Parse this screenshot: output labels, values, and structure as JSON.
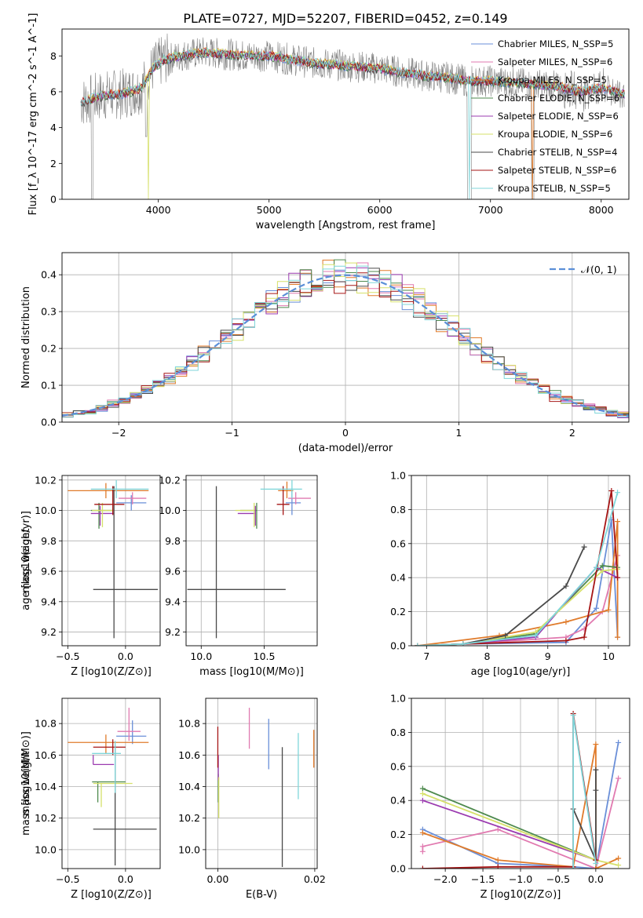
{
  "title": "PLATE=0727, MJD=52207, FIBERID=0452, z=0.149",
  "colors": {
    "chabrier_miles": "#6a8fd8",
    "salpeter_miles": "#e17ab0",
    "kroupa_miles": "#e07b2b",
    "chabrier_elodie": "#4e8a4e",
    "salpeter_elodie": "#9b3bb0",
    "kroupa_elodie": "#d6e06a",
    "chabrier_stelib": "#4a4a4a",
    "salpeter_stelib": "#a61515",
    "kroupa_stelib": "#7fd6da",
    "data": "#808080",
    "gaussian": "#5b8fd8"
  },
  "chart_data": [
    {
      "id": "spectrum",
      "type": "line",
      "xlabel": "wavelength [Angstrom, rest frame]",
      "ylabel": "Flux [f_λ 10^-17 erg cm^-2 s^-1 A^-1]",
      "xlim": [
        3130,
        8250
      ],
      "ylim": [
        0,
        9.5
      ],
      "xticks": [
        4000,
        5000,
        6000,
        7000,
        8000
      ],
      "yticks": [
        0,
        2,
        4,
        6,
        8
      ],
      "grid": false,
      "legend_position": "upper-right",
      "legend": [
        "Chabrier MILES, N_SSP=5",
        "Salpeter MILES, N_SSP=6",
        "Kroupa MILES, N_SSP=5",
        "Chabrier ELODIE, N_SSP=6",
        "Salpeter ELODIE, N_SSP=6",
        "Kroupa ELODIE, N_SSP=6",
        "Chabrier STELIB, N_SSP=4",
        "Salpeter STELIB, N_SSP=6",
        "Kroupa STELIB, N_SSP=5"
      ],
      "continuum": {
        "wavelength": [
          3300,
          3500,
          3700,
          3850,
          3950,
          4050,
          4200,
          4400,
          4600,
          4800,
          5000,
          5200,
          5400,
          5600,
          5800,
          6000,
          6200,
          6400,
          6600,
          6800,
          7000,
          7200,
          7400,
          7600,
          7800,
          8000,
          8250
        ],
        "flux": [
          5.4,
          5.8,
          5.9,
          6.2,
          7.3,
          7.8,
          8.0,
          8.2,
          8.1,
          8.0,
          8.0,
          7.8,
          7.6,
          7.5,
          7.4,
          7.3,
          7.1,
          6.9,
          6.8,
          6.6,
          6.6,
          6.5,
          6.4,
          6.3,
          6.0,
          6.2,
          5.8
        ]
      }
    },
    {
      "id": "residuals",
      "type": "histogram",
      "xlabel": "(data-model)/error",
      "ylabel": "Normed distribution",
      "xlim": [
        -2.5,
        2.5
      ],
      "ylim": [
        0,
        0.46
      ],
      "xticks": [
        -2,
        -1,
        0,
        1,
        2
      ],
      "yticks": [
        0.0,
        0.1,
        0.2,
        0.3,
        0.4
      ],
      "grid": true,
      "legend_position": "upper-right",
      "legend": [
        "𝒩(0, 1)"
      ],
      "gaussian": {
        "mean": 0,
        "sigma": 1
      }
    },
    {
      "id": "age_vs_Z",
      "type": "errorbar",
      "xlabel": "Z [log10(Z/Z⊙)]",
      "ylabel": "age [log10(age/yr)]",
      "xlim": [
        -0.55,
        0.3
      ],
      "ylim": [
        9.11,
        10.23
      ],
      "xticks": [
        -0.5,
        0.0
      ],
      "yticks": [
        9.2,
        9.4,
        9.6,
        9.8,
        10.0,
        10.2
      ],
      "grid": true,
      "points": [
        {
          "series": "chabrier_miles",
          "x": 0.05,
          "xerr": [
            0.13,
            0.13
          ],
          "y": 10.05,
          "yerr": [
            0.05,
            0.05
          ]
        },
        {
          "series": "salpeter_miles",
          "x": 0.06,
          "xerr": [
            0.12,
            0.12
          ],
          "y": 10.08,
          "yerr": [
            0.04,
            0.04
          ]
        },
        {
          "series": "kroupa_miles",
          "x": -0.17,
          "xerr": [
            0.33,
            0.37
          ],
          "y": 10.13,
          "yerr": [
            0.05,
            0.05
          ]
        },
        {
          "series": "chabrier_elodie",
          "x": -0.23,
          "xerr": [
            0.07,
            0.12
          ],
          "y": 10.0,
          "yerr": [
            0.12,
            0.05
          ]
        },
        {
          "series": "salpeter_elodie",
          "x": -0.22,
          "xerr": [
            0.08,
            0.12
          ],
          "y": 9.98,
          "yerr": [
            0.08,
            0.05
          ]
        },
        {
          "series": "kroupa_elodie",
          "x": -0.2,
          "xerr": [
            0.09,
            0.1
          ],
          "y": 10.0,
          "yerr": [
            0.11,
            0.05
          ]
        },
        {
          "series": "chabrier_stelib",
          "x": -0.1,
          "xerr": [
            0.18,
            0.38
          ],
          "y": 9.48,
          "yerr": [
            0.32,
            0.68
          ]
        },
        {
          "series": "salpeter_stelib",
          "x": -0.11,
          "xerr": [
            0.16,
            0.1
          ],
          "y": 10.04,
          "yerr": [
            0.07,
            0.12
          ]
        },
        {
          "series": "kroupa_stelib",
          "x": -0.08,
          "xerr": [
            0.22,
            0.28
          ],
          "y": 10.14,
          "yerr": [
            0.06,
            0.06
          ]
        }
      ]
    },
    {
      "id": "age_vs_mass",
      "type": "errorbar",
      "xlabel": "mass [log10(M/M⊙)]",
      "ylabel": "",
      "xlim": [
        9.88,
        10.92
      ],
      "ylim": [
        9.11,
        10.23
      ],
      "xticks": [
        10.0,
        10.5
      ],
      "yticks": [
        9.2,
        9.4,
        9.6,
        9.8,
        10.0,
        10.2
      ],
      "grid": true,
      "points": [
        {
          "series": "chabrier_miles",
          "x": 10.72,
          "xerr": [
            0.05,
            0.07
          ],
          "y": 10.05,
          "yerr": [
            0.08,
            0.08
          ]
        },
        {
          "series": "salpeter_miles",
          "x": 10.75,
          "xerr": [
            0.06,
            0.12
          ],
          "y": 10.08,
          "yerr": [
            0.04,
            0.04
          ]
        },
        {
          "series": "kroupa_miles",
          "x": 10.68,
          "xerr": [
            0.07,
            0.05
          ],
          "y": 10.13,
          "yerr": [
            0.05,
            0.06
          ]
        },
        {
          "series": "chabrier_elodie",
          "x": 10.44,
          "xerr": [
            0.13,
            0.0
          ],
          "y": 10.0,
          "yerr": [
            0.12,
            0.05
          ]
        },
        {
          "series": "salpeter_elodie",
          "x": 10.43,
          "xerr": [
            0.14,
            0.0
          ],
          "y": 9.98,
          "yerr": [
            0.08,
            0.05
          ]
        },
        {
          "series": "kroupa_elodie",
          "x": 10.42,
          "xerr": [
            0.15,
            0.0
          ],
          "y": 10.0,
          "yerr": [
            0.11,
            0.05
          ]
        },
        {
          "series": "chabrier_stelib",
          "x": 10.12,
          "xerr": [
            0.23,
            0.55
          ],
          "y": 9.48,
          "yerr": [
            0.32,
            0.68
          ]
        },
        {
          "series": "salpeter_stelib",
          "x": 10.65,
          "xerr": [
            0.05,
            0.05
          ],
          "y": 10.04,
          "yerr": [
            0.07,
            0.12
          ]
        },
        {
          "series": "kroupa_stelib",
          "x": 10.72,
          "xerr": [
            0.25,
            0.08
          ],
          "y": 10.14,
          "yerr": [
            0.06,
            0.06
          ]
        }
      ]
    },
    {
      "id": "weight_vs_age",
      "type": "line",
      "xlabel": "age [log10(age/yr)]",
      "ylabel": "mass weight",
      "xlim": [
        6.75,
        10.35
      ],
      "ylim": [
        0,
        1.0
      ],
      "xticks": [
        7,
        8,
        9,
        10
      ],
      "yticks": [
        0.0,
        0.2,
        0.4,
        0.6,
        0.8,
        1.0
      ],
      "grid": true,
      "series": [
        {
          "key": "chabrier_miles",
          "x": [
            6.85,
            7.6,
            9.3,
            9.8,
            10.05,
            10.15
          ],
          "y": [
            0.0,
            0.01,
            0.02,
            0.22,
            0.74,
            0.05
          ]
        },
        {
          "key": "salpeter_miles",
          "x": [
            6.85,
            7.6,
            9.3,
            9.6,
            9.9,
            10.15
          ],
          "y": [
            0.0,
            0.01,
            0.05,
            0.1,
            0.2,
            0.53
          ]
        },
        {
          "key": "kroupa_miles",
          "x": [
            6.85,
            8.2,
            9.3,
            10.0,
            10.15,
            10.15
          ],
          "y": [
            0.0,
            0.06,
            0.14,
            0.21,
            0.73,
            0.05
          ]
        },
        {
          "key": "chabrier_elodie",
          "x": [
            6.85,
            7.6,
            8.8,
            9.9,
            10.15
          ],
          "y": [
            0.0,
            0.01,
            0.07,
            0.47,
            0.46
          ]
        },
        {
          "key": "salpeter_elodie",
          "x": [
            6.85,
            7.6,
            8.8,
            9.8,
            10.15
          ],
          "y": [
            0.0,
            0.01,
            0.05,
            0.46,
            0.4
          ]
        },
        {
          "key": "kroupa_elodie",
          "x": [
            6.85,
            7.6,
            8.8,
            9.9,
            10.15
          ],
          "y": [
            0.0,
            0.01,
            0.08,
            0.44,
            0.45
          ]
        },
        {
          "key": "chabrier_stelib",
          "x": [
            7.6,
            8.3,
            9.3,
            9.6
          ],
          "y": [
            0.01,
            0.06,
            0.35,
            0.58
          ]
        },
        {
          "key": "salpeter_stelib",
          "x": [
            6.85,
            7.6,
            9.3,
            9.6,
            10.05,
            10.15
          ],
          "y": [
            0.0,
            0.01,
            0.03,
            0.05,
            0.91,
            0.4
          ]
        },
        {
          "key": "kroupa_stelib",
          "x": [
            6.85,
            7.6,
            8.8,
            9.8,
            10.15
          ],
          "y": [
            0.0,
            0.01,
            0.06,
            0.46,
            0.9
          ]
        }
      ]
    },
    {
      "id": "mass_vs_Z",
      "type": "errorbar",
      "xlabel": "Z [log10(Z/Z⊙)]",
      "ylabel": "mass [log10(M/M⊙)]",
      "xlim": [
        -0.55,
        0.3
      ],
      "ylim": [
        9.88,
        10.96
      ],
      "xticks": [
        -0.5,
        0.0
      ],
      "yticks": [
        10.0,
        10.2,
        10.4,
        10.6,
        10.8
      ],
      "grid": true,
      "points": [
        {
          "series": "chabrier_miles",
          "x": 0.06,
          "xerr": [
            0.14,
            0.12
          ],
          "y": 10.72,
          "yerr": [
            0.05,
            0.1
          ]
        },
        {
          "series": "salpeter_miles",
          "x": 0.03,
          "xerr": [
            0.1,
            0.1
          ],
          "y": 10.75,
          "yerr": [
            0.06,
            0.15
          ]
        },
        {
          "series": "kroupa_miles",
          "x": -0.17,
          "xerr": [
            0.33,
            0.37
          ],
          "y": 10.68,
          "yerr": [
            0.07,
            0.05
          ]
        },
        {
          "series": "chabrier_elodie",
          "x": -0.24,
          "xerr": [
            0.05,
            0.24
          ],
          "y": 10.43,
          "yerr": [
            0.13,
            0.0
          ]
        },
        {
          "series": "salpeter_elodie",
          "x": -0.28,
          "xerr": [
            0.0,
            0.18
          ],
          "y": 10.54,
          "yerr": [
            0.0,
            0.06
          ]
        },
        {
          "series": "kroupa_elodie",
          "x": -0.21,
          "xerr": [
            0.07,
            0.27
          ],
          "y": 10.42,
          "yerr": [
            0.15,
            0.0
          ]
        },
        {
          "series": "chabrier_stelib",
          "x": -0.09,
          "xerr": [
            0.19,
            0.36
          ],
          "y": 10.13,
          "yerr": [
            0.23,
            0.53
          ]
        },
        {
          "series": "salpeter_stelib",
          "x": -0.11,
          "xerr": [
            0.17,
            0.11
          ],
          "y": 10.65,
          "yerr": [
            0.05,
            0.05
          ]
        },
        {
          "series": "kroupa_stelib",
          "x": -0.09,
          "xerr": [
            0.2,
            0.05
          ],
          "y": 10.61,
          "yerr": [
            0.25,
            0.08
          ]
        }
      ]
    },
    {
      "id": "mass_vs_ebv",
      "type": "errorbar",
      "xlabel": "E(B-V)",
      "ylabel": "",
      "xlim": [
        -0.0025,
        0.0205
      ],
      "ylim": [
        9.88,
        10.96
      ],
      "xticks": [
        0.0,
        0.02
      ],
      "yticks": [
        10.0,
        10.2,
        10.4,
        10.6,
        10.8
      ],
      "grid": true,
      "points": [
        {
          "series": "chabrier_miles",
          "x": 0.0105,
          "xerr": [
            0,
            0
          ],
          "y": 10.67,
          "yerr": [
            0.16,
            0.16
          ]
        },
        {
          "series": "salpeter_miles",
          "x": 0.0065,
          "xerr": [
            0,
            0
          ],
          "y": 10.77,
          "yerr": [
            0.13,
            0.13
          ]
        },
        {
          "series": "kroupa_miles",
          "x": 0.0198,
          "xerr": [
            0,
            0
          ],
          "y": 10.64,
          "yerr": [
            0.12,
            0.12
          ]
        },
        {
          "series": "chabrier_elodie",
          "x": 0.0001,
          "xerr": [
            0,
            0
          ],
          "y": 10.43,
          "yerr": [
            0.13,
            0.05
          ]
        },
        {
          "series": "salpeter_elodie",
          "x": 0.0001,
          "xerr": [
            0,
            0
          ],
          "y": 10.54,
          "yerr": [
            0.1,
            0.06
          ]
        },
        {
          "series": "kroupa_elodie",
          "x": 0.0002,
          "xerr": [
            0,
            0
          ],
          "y": 10.33,
          "yerr": [
            0.13,
            0.13
          ]
        },
        {
          "series": "chabrier_stelib",
          "x": 0.0133,
          "xerr": [
            0,
            0
          ],
          "y": 10.42,
          "yerr": [
            0.53,
            0.23
          ]
        },
        {
          "series": "salpeter_stelib",
          "x": 0.0,
          "xerr": [
            0,
            0
          ],
          "y": 10.65,
          "yerr": [
            0.13,
            0.13
          ]
        },
        {
          "series": "kroupa_stelib",
          "x": 0.0166,
          "xerr": [
            0,
            0
          ],
          "y": 10.53,
          "yerr": [
            0.21,
            0.21
          ]
        }
      ]
    },
    {
      "id": "weight_vs_Z",
      "type": "line",
      "xlabel": "Z [log10(Z/Z⊙)]",
      "ylabel": "mass weight",
      "xlim": [
        -2.45,
        0.45
      ],
      "ylim": [
        0,
        1.0
      ],
      "xticks": [
        -2.0,
        -1.5,
        -1.0,
        -0.5,
        0.0
      ],
      "yticks": [
        0.0,
        0.2,
        0.4,
        0.6,
        0.8,
        1.0
      ],
      "grid": true,
      "series": [
        {
          "key": "chabrier_miles",
          "x": [
            -2.3,
            -1.3,
            -0.3,
            0.0,
            0.3
          ],
          "y": [
            0.23,
            0.03,
            0.01,
            0.0,
            0.74
          ]
        },
        {
          "key": "salpeter_miles",
          "x": [
            -2.3,
            -2.3,
            -1.3,
            0.0,
            0.3
          ],
          "y": [
            0.1,
            0.13,
            0.23,
            0.0,
            0.53
          ]
        },
        {
          "key": "kroupa_miles",
          "x": [
            -2.3,
            -1.3,
            -0.3,
            0.0,
            0.0,
            0.3
          ],
          "y": [
            0.21,
            0.05,
            0.01,
            0.73,
            0.0,
            0.06
          ]
        },
        {
          "key": "chabrier_elodie",
          "x": [
            -2.3,
            0.0
          ],
          "y": [
            0.47,
            0.05
          ]
        },
        {
          "key": "salpeter_elodie",
          "x": [
            -2.3,
            0.0
          ],
          "y": [
            0.4,
            0.05
          ]
        },
        {
          "key": "kroupa_elodie",
          "x": [
            -2.3,
            0.0,
            0.3
          ],
          "y": [
            0.44,
            0.05,
            0.02
          ]
        },
        {
          "key": "chabrier_stelib",
          "x": [
            -0.3,
            0.0,
            0.0,
            0.0
          ],
          "y": [
            0.35,
            0.05,
            0.58,
            0.46
          ]
        },
        {
          "key": "salpeter_stelib",
          "x": [
            -2.3,
            -1.3,
            -0.3,
            -0.3,
            0.0
          ],
          "y": [
            0.0,
            0.01,
            0.01,
            0.91,
            0.05
          ]
        },
        {
          "key": "kroupa_stelib",
          "x": [
            -0.3,
            -0.3,
            0.0
          ],
          "y": [
            0.0,
            0.9,
            0.03
          ]
        }
      ]
    }
  ]
}
